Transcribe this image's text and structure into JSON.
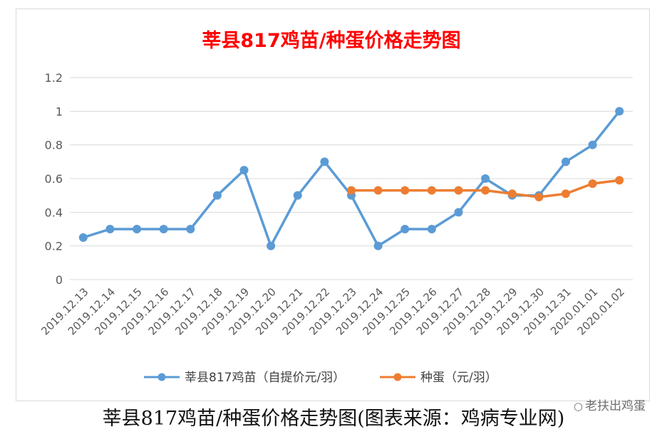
{
  "chart_data": {
    "type": "line",
    "title": "莘县817鸡苗/种蛋价格走势图",
    "xlabel": "",
    "ylabel": "",
    "categories": [
      "2019.12.13",
      "2019.12.14",
      "2019.12.15",
      "2019.12.16",
      "2019.12.17",
      "2019.12.18",
      "2019.12.19",
      "2019.12.20",
      "2019.12.21",
      "2019.12.22",
      "2019.12.23",
      "2019.12.24",
      "2019.12.25",
      "2019.12.26",
      "2019.12.27",
      "2019.12.28",
      "2019.12.29",
      "2019.12.30",
      "2019.12.31",
      "2020.01.01",
      "2020.01.02"
    ],
    "yticks": [
      "0",
      "0.2",
      "0.4",
      "0.6",
      "0.8",
      "1",
      "1.2"
    ],
    "ylim": [
      0,
      1.2
    ],
    "grid": true,
    "legend_position": "bottom",
    "series": [
      {
        "name": "莘县817鸡苗（自提价元/羽）",
        "color": "#5b9bd5",
        "values": [
          0.25,
          0.3,
          0.3,
          0.3,
          0.3,
          0.5,
          0.65,
          0.2,
          0.5,
          0.7,
          0.5,
          0.2,
          0.3,
          0.3,
          0.4,
          0.6,
          0.5,
          0.5,
          0.7,
          0.8,
          1.0
        ]
      },
      {
        "name": "种蛋（元/羽）",
        "color": "#ed7d31",
        "values": [
          null,
          null,
          null,
          null,
          null,
          null,
          null,
          null,
          null,
          null,
          0.53,
          0.53,
          0.53,
          0.53,
          0.53,
          0.53,
          0.51,
          0.49,
          0.51,
          0.57,
          0.59
        ]
      }
    ],
    "title_color": "#ff0000"
  },
  "caption": "莘县817鸡苗/种蛋价格走势图(图表来源：鸡病专业网)",
  "watermark": "老扶出鸡蛋",
  "watermark_icon": "chat-bubble-icon"
}
